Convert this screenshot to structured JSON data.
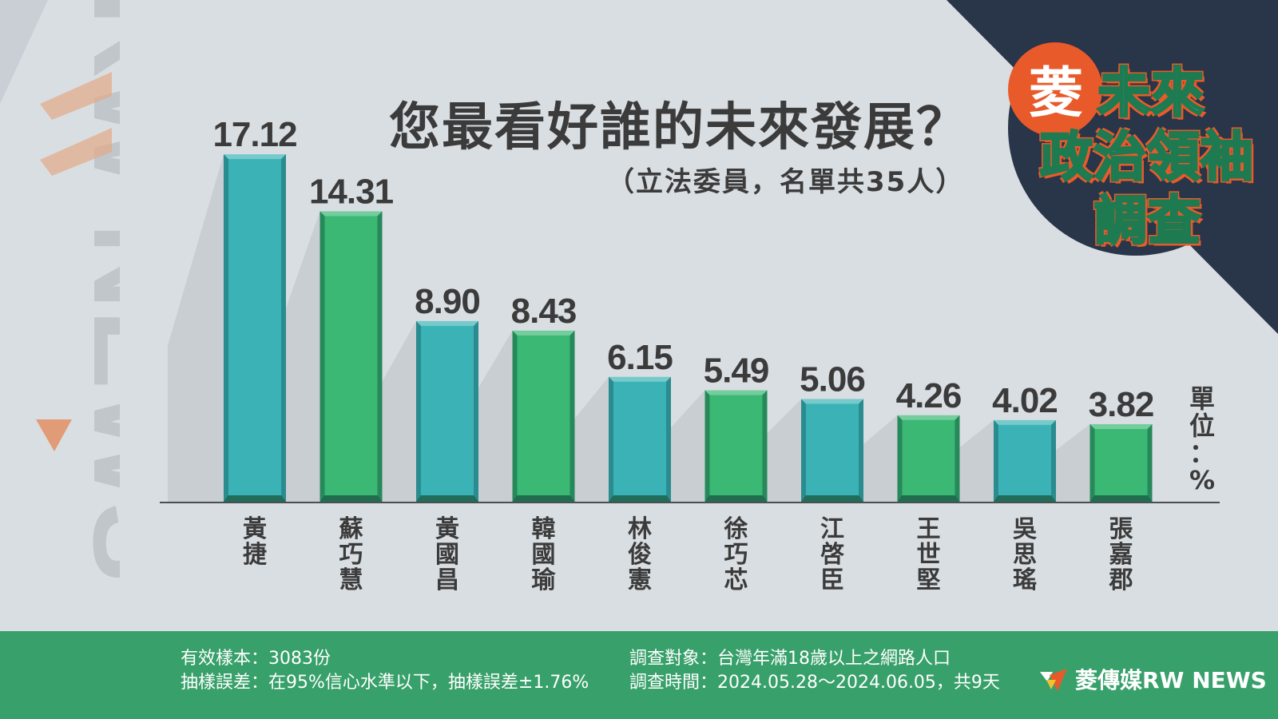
{
  "watermark": "RW NEWS",
  "badge": {
    "ling": "菱",
    "line1": "未來",
    "line2": "政治領袖",
    "line3": "調查"
  },
  "chart_data": {
    "type": "bar",
    "title": "您最看好誰的未來發展？",
    "subtitle": "（立法委員，名單共35人）",
    "unit_label": [
      "單",
      "位",
      "：",
      "%"
    ],
    "categories": [
      "黃捷",
      "蘇巧慧",
      "黃國昌",
      "韓國瑜",
      "林俊憲",
      "徐巧芯",
      "江啓臣",
      "王世堅",
      "吳思瑤",
      "張嘉郡"
    ],
    "values": [
      17.12,
      14.31,
      8.9,
      8.43,
      6.15,
      5.49,
      5.06,
      4.26,
      4.02,
      3.82
    ],
    "value_labels": [
      "17.12",
      "14.31",
      "8.90",
      "8.43",
      "6.15",
      "5.49",
      "5.06",
      "4.26",
      "4.02",
      "3.82"
    ],
    "colors": [
      "#3bb3b6",
      "#3ab874"
    ],
    "ylim": [
      0,
      20
    ],
    "grid": false
  },
  "footer": {
    "left": [
      "有效樣本：3083份",
      "抽樣誤差：在95%信心水準以下，抽樣誤差±1.76%"
    ],
    "right": [
      "調查對象：台灣年滿18歲以上之網路人口",
      "調查時間：2024.05.28～2024.06.05，共9天"
    ],
    "brand": "菱傳媒RW NEWS"
  }
}
